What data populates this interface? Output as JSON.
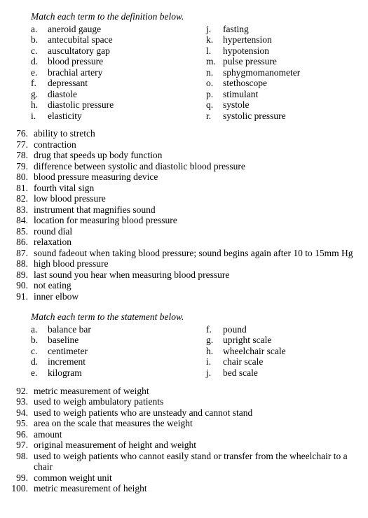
{
  "section1": {
    "instruction": "Match each term to the definition below.",
    "termsLeft": [
      {
        "letter": "a.",
        "text": "aneroid gauge"
      },
      {
        "letter": "b.",
        "text": "antecubital space"
      },
      {
        "letter": "c.",
        "text": "auscultatory gap"
      },
      {
        "letter": "d.",
        "text": "blood pressure"
      },
      {
        "letter": "e.",
        "text": "brachial artery"
      },
      {
        "letter": "f.",
        "text": "depressant"
      },
      {
        "letter": "g.",
        "text": "diastole"
      },
      {
        "letter": "h.",
        "text": "diastolic pressure"
      },
      {
        "letter": "i.",
        "text": "elasticity"
      }
    ],
    "termsRight": [
      {
        "letter": "j.",
        "text": "fasting"
      },
      {
        "letter": "k.",
        "text": "hypertension"
      },
      {
        "letter": "l.",
        "text": "hypotension"
      },
      {
        "letter": "m.",
        "text": "pulse pressure"
      },
      {
        "letter": "n.",
        "text": "sphygmomanometer"
      },
      {
        "letter": "o.",
        "text": "stethoscope"
      },
      {
        "letter": "p.",
        "text": "stimulant"
      },
      {
        "letter": "q.",
        "text": "systole"
      },
      {
        "letter": "r.",
        "text": "systolic pressure"
      }
    ],
    "definitions": [
      {
        "num": "76.",
        "text": "ability to stretch"
      },
      {
        "num": "77.",
        "text": "contraction"
      },
      {
        "num": "78.",
        "text": "drug that speeds up body function"
      },
      {
        "num": "79.",
        "text": "difference between systolic and diastolic blood pressure"
      },
      {
        "num": "80.",
        "text": "blood pressure measuring device"
      },
      {
        "num": "81.",
        "text": "fourth vital sign"
      },
      {
        "num": "82.",
        "text": "low blood pressure"
      },
      {
        "num": "83.",
        "text": "instrument that magnifies sound"
      },
      {
        "num": "84.",
        "text": "location for measuring blood pressure"
      },
      {
        "num": "85.",
        "text": "round dial"
      },
      {
        "num": "86.",
        "text": "relaxation"
      },
      {
        "num": "87.",
        "text": "sound fadeout when taking blood pressure; sound begins again after 10 to 15mm Hg"
      },
      {
        "num": "88.",
        "text": "high blood pressure"
      },
      {
        "num": "89.",
        "text": "last sound you hear when measuring blood pressure"
      },
      {
        "num": "90.",
        "text": "not eating"
      },
      {
        "num": "91.",
        "text": "inner elbow"
      }
    ]
  },
  "section2": {
    "instruction": "Match each term to the statement below.",
    "termsLeft": [
      {
        "letter": "a.",
        "text": "balance bar"
      },
      {
        "letter": "b.",
        "text": "baseline"
      },
      {
        "letter": "c.",
        "text": "centimeter"
      },
      {
        "letter": "d.",
        "text": "increment"
      },
      {
        "letter": "e.",
        "text": "kilogram"
      }
    ],
    "termsRight": [
      {
        "letter": "f.",
        "text": "pound"
      },
      {
        "letter": "g.",
        "text": "upright scale"
      },
      {
        "letter": "h.",
        "text": "wheelchair scale"
      },
      {
        "letter": "i.",
        "text": "chair scale"
      },
      {
        "letter": "j.",
        "text": "bed scale"
      }
    ],
    "definitions": [
      {
        "num": "92.",
        "text": "metric measurement of weight"
      },
      {
        "num": "93.",
        "text": "used to weigh ambulatory patients"
      },
      {
        "num": "94.",
        "text": "used to weigh patients who are unsteady and cannot stand"
      },
      {
        "num": "95.",
        "text": "area on the scale that measures the weight"
      },
      {
        "num": "96.",
        "text": "amount"
      },
      {
        "num": "97.",
        "text": "original measurement of height and weight"
      },
      {
        "num": "98.",
        "text": "used to weigh patients who cannot easily stand or transfer from the wheelchair to a chair"
      },
      {
        "num": "99.",
        "text": "common weight unit"
      },
      {
        "num": "100.",
        "text": "metric measurement of height"
      }
    ]
  }
}
